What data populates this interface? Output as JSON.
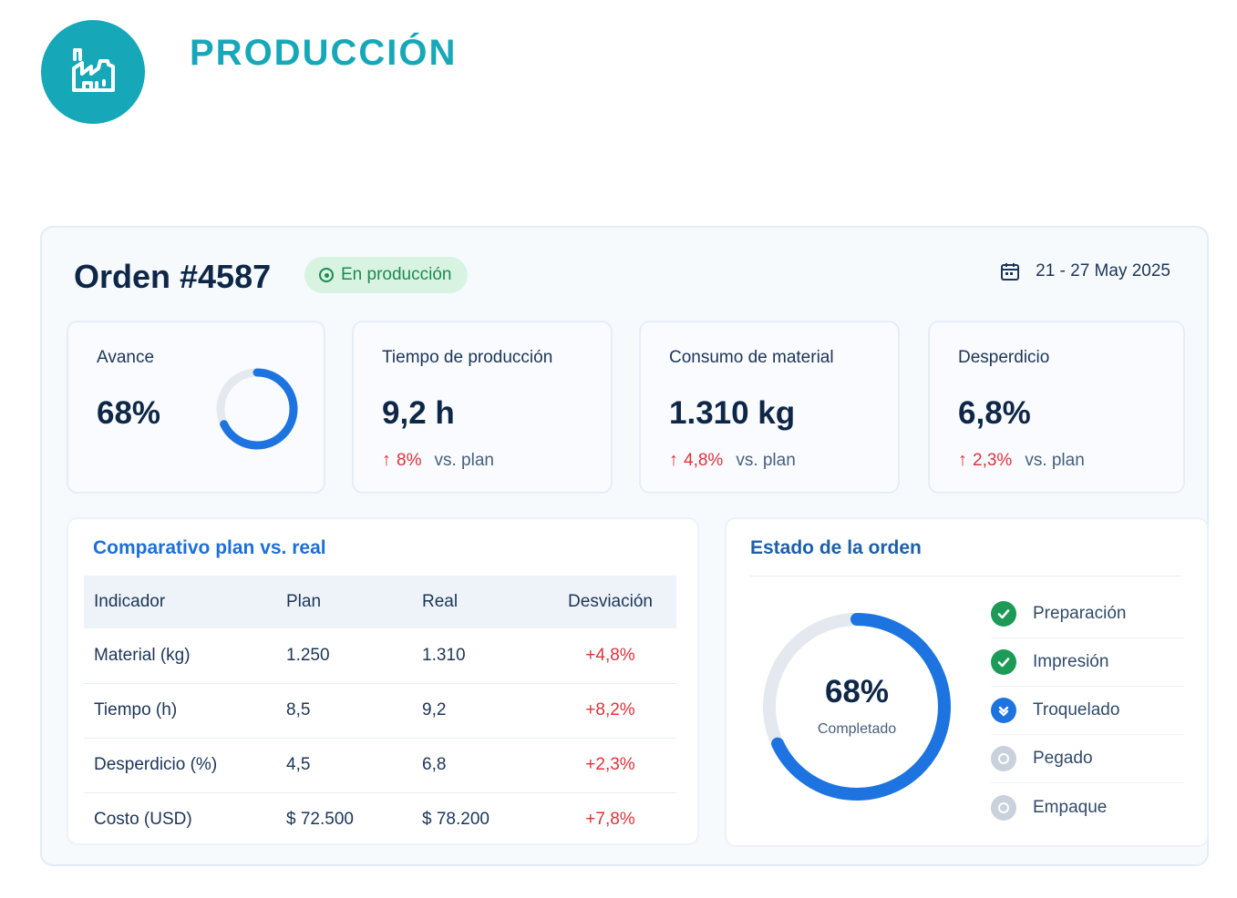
{
  "header": {
    "title": "PRODUCCIÓN",
    "logo_icon": "factory-icon",
    "accent_color": "#16a8b8"
  },
  "order": {
    "title": "Orden #4587",
    "status": "En producción",
    "date_range": "21 - 27 May 2025"
  },
  "kpis": [
    {
      "label": "Avance",
      "value": "68%",
      "progress": 0.68
    },
    {
      "label": "Tiempo de producción",
      "value": "9,2 h",
      "delta": "8%",
      "vs": "vs. plan"
    },
    {
      "label": "Consumo de material",
      "value": "1.310 kg",
      "delta": "4,8%",
      "vs": "vs. plan"
    },
    {
      "label": "Desperdicio",
      "value": "6,8%",
      "delta": "2,3%",
      "vs": "vs. plan"
    }
  ],
  "comparison": {
    "title": "Comparativo plan vs. real",
    "headers": [
      "Indicador",
      "Plan",
      "Real",
      "Desviación"
    ],
    "rows": [
      [
        "Material (kg)",
        "1.250",
        "1.310",
        "+4,8%"
      ],
      [
        "Tiempo (h)",
        "8,5",
        "9,2",
        "+8,2%"
      ],
      [
        "Desperdicio (%)",
        "4,5",
        "6,8",
        "+2,3%"
      ],
      [
        "Costo (USD)",
        "$ 72.500",
        "$ 78.200",
        "+7,8%"
      ]
    ]
  },
  "order_status": {
    "title": "Estado de la orden",
    "percent": "68%",
    "progress": 0.68,
    "subtitle": "Completado",
    "steps": [
      {
        "label": "Preparación",
        "state": "done"
      },
      {
        "label": "Impresión",
        "state": "done"
      },
      {
        "label": "Troquelado",
        "state": "active"
      },
      {
        "label": "Pegado",
        "state": "pending"
      },
      {
        "label": "Empaque",
        "state": "pending"
      }
    ]
  },
  "colors": {
    "primary_blue": "#1d74e0",
    "negative_red": "#e0323a",
    "success_green": "#1d9a55",
    "ring_track": "#e4e9f0"
  }
}
